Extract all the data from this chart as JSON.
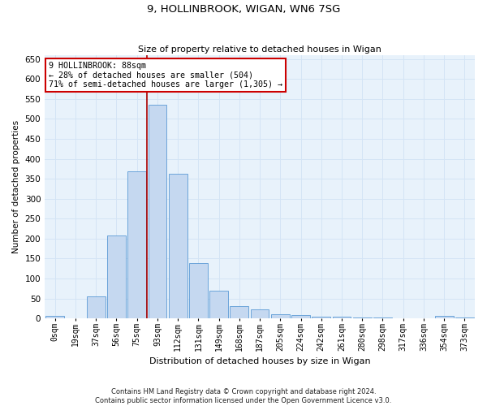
{
  "title": "9, HOLLINBROOK, WIGAN, WN6 7SG",
  "subtitle": "Size of property relative to detached houses in Wigan",
  "xlabel": "Distribution of detached houses by size in Wigan",
  "ylabel": "Number of detached properties",
  "bar_labels": [
    "0sqm",
    "19sqm",
    "37sqm",
    "56sqm",
    "75sqm",
    "93sqm",
    "112sqm",
    "131sqm",
    "149sqm",
    "168sqm",
    "187sqm",
    "205sqm",
    "224sqm",
    "242sqm",
    "261sqm",
    "280sqm",
    "298sqm",
    "317sqm",
    "336sqm",
    "354sqm",
    "373sqm"
  ],
  "bar_values": [
    7,
    0,
    55,
    207,
    369,
    535,
    362,
    138,
    70,
    30,
    22,
    10,
    8,
    5,
    5,
    2,
    2,
    0,
    1,
    7,
    2
  ],
  "bar_color": "#c5d8f0",
  "bar_edge_color": "#5b9bd5",
  "grid_color": "#d4e4f5",
  "background_color": "#e8f2fb",
  "vline_color": "#aa0000",
  "vline_pos": 4.5,
  "annotation_text": "9 HOLLINBROOK: 88sqm\n← 28% of detached houses are smaller (504)\n71% of semi-detached houses are larger (1,305) →",
  "annotation_box_facecolor": "#ffffff",
  "annotation_box_edgecolor": "#cc0000",
  "ylim": [
    0,
    660
  ],
  "yticks": [
    0,
    50,
    100,
    150,
    200,
    250,
    300,
    350,
    400,
    450,
    500,
    550,
    600,
    650
  ],
  "footer1": "Contains HM Land Registry data © Crown copyright and database right 2024.",
  "footer2": "Contains public sector information licensed under the Open Government Licence v3.0."
}
